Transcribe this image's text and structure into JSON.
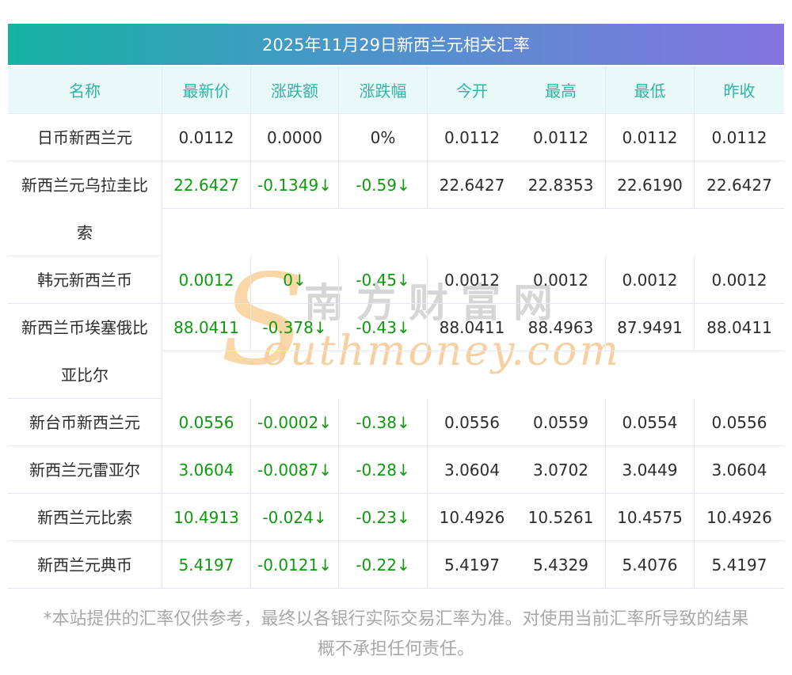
{
  "title": "2025年11月29日新西兰元相关汇率",
  "table": {
    "columns": [
      "名称",
      "最新价",
      "涨跌额",
      "涨跌幅",
      "今开",
      "最高",
      "最低",
      "昨收"
    ],
    "column_keys": [
      "name",
      "latest",
      "change",
      "change-pct",
      "open",
      "high",
      "low",
      "prev-close"
    ],
    "rows": [
      {
        "name": "日币新西兰元",
        "name_lines": [
          "日币新西兰元"
        ],
        "direction": "flat",
        "latest": "0.0112",
        "change": "0.0000",
        "change_pct": "0%",
        "open": "0.0112",
        "high": "0.0112",
        "low": "0.0112",
        "prev_close": "0.0112"
      },
      {
        "name": "新西兰元乌拉圭比索",
        "name_lines": [
          "新西兰元乌拉圭比",
          "索"
        ],
        "direction": "down",
        "latest": "22.6427",
        "change": "-0.1349↓",
        "change_pct": "-0.59↓",
        "open": "22.6427",
        "high": "22.8353",
        "low": "22.6190",
        "prev_close": "22.6427"
      },
      {
        "name": "韩元新西兰币",
        "name_lines": [
          "韩元新西兰币"
        ],
        "direction": "down",
        "latest": "0.0012",
        "change": "0↓",
        "change_pct": "-0.45↓",
        "open": "0.0012",
        "high": "0.0012",
        "low": "0.0012",
        "prev_close": "0.0012"
      },
      {
        "name": "新西兰币埃塞俄比亚比尔",
        "name_lines": [
          "新西兰币埃塞俄比",
          "亚比尔"
        ],
        "direction": "down",
        "latest": "88.0411",
        "change": "-0.378↓",
        "change_pct": "-0.43↓",
        "open": "88.0411",
        "high": "88.4963",
        "low": "87.9491",
        "prev_close": "88.0411"
      },
      {
        "name": "新台币新西兰元",
        "name_lines": [
          "新台币新西兰元"
        ],
        "direction": "down",
        "latest": "0.0556",
        "change": "-0.0002↓",
        "change_pct": "-0.38↓",
        "open": "0.0556",
        "high": "0.0559",
        "low": "0.0554",
        "prev_close": "0.0556"
      },
      {
        "name": "新西兰元雷亚尔",
        "name_lines": [
          "新西兰元雷亚尔"
        ],
        "direction": "down",
        "latest": "3.0604",
        "change": "-0.0087↓",
        "change_pct": "-0.28↓",
        "open": "3.0604",
        "high": "3.0702",
        "low": "3.0449",
        "prev_close": "3.0604"
      },
      {
        "name": "新西兰元比索",
        "name_lines": [
          "新西兰元比索"
        ],
        "direction": "down",
        "latest": "10.4913",
        "change": "-0.024↓",
        "change_pct": "-0.23↓",
        "open": "10.4926",
        "high": "10.5261",
        "low": "10.4575",
        "prev_close": "10.4926"
      },
      {
        "name": "新西兰元典币",
        "name_lines": [
          "新西兰元典币"
        ],
        "direction": "down",
        "latest": "5.4197",
        "change": "-0.0121↓",
        "change_pct": "-0.22↓",
        "open": "5.4197",
        "high": "5.4329",
        "low": "5.4076",
        "prev_close": "5.4197"
      }
    ]
  },
  "watermark": {
    "initial": "S",
    "cn_text": "南方财富网",
    "en_text": "outhmoney.com"
  },
  "footer": {
    "line1": "*本站提供的汇率仅供参考，最终以各银行实际交易汇率为准。对使用当前汇率所导致的结果",
    "line2": "概不承担任何责任。"
  },
  "colors": {
    "title_gradient_left": "#15b2a2",
    "title_gradient_mid": "#4f93cd",
    "title_gradient_right": "#8575e0",
    "header_bg": "#e9f9f7",
    "header_text": "#30b4a6",
    "border": "#e4e9ef",
    "body_text": "#2c2c2c",
    "down_green": "#0d9b0d",
    "footer_text": "#a8a8a8",
    "watermark_gray": "#d6d6d6",
    "watermark_orange": "#f7cfa0"
  }
}
